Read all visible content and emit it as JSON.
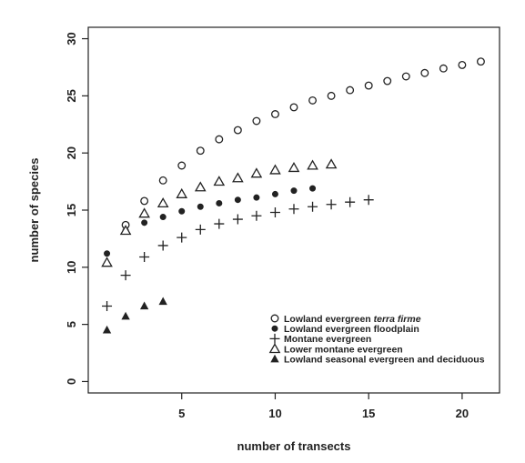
{
  "chart_data": {
    "type": "scatter",
    "title": "",
    "xlabel": "number of transects",
    "ylabel": "number of species",
    "xlim": [
      0,
      22
    ],
    "ylim": [
      -1,
      31
    ],
    "xticks": [
      5,
      10,
      15,
      20
    ],
    "yticks": [
      0,
      5,
      10,
      15,
      20,
      25,
      30
    ],
    "grid": false,
    "legend_position": "bottom-right",
    "series": [
      {
        "name": "Lowland evergreen terra firme",
        "name_parts": [
          "Lowland evergreen ",
          "terra firme"
        ],
        "marker": "open-circle",
        "x": [
          2,
          3,
          4,
          5,
          6,
          7,
          8,
          9,
          10,
          11,
          12,
          13,
          14,
          15,
          16,
          17,
          18,
          19,
          20,
          21
        ],
        "y": [
          13.7,
          15.8,
          17.6,
          18.9,
          20.2,
          21.2,
          22.0,
          22.8,
          23.4,
          24.0,
          24.6,
          25.0,
          25.5,
          25.9,
          26.3,
          26.7,
          27.0,
          27.4,
          27.7,
          28.0
        ]
      },
      {
        "name": "Lowland evergreen floodplain",
        "marker": "filled-circle",
        "x": [
          1,
          2,
          3,
          4,
          5,
          6,
          7,
          8,
          9,
          10,
          11,
          12
        ],
        "y": [
          11.2,
          13.2,
          13.9,
          14.4,
          14.9,
          15.3,
          15.6,
          15.9,
          16.1,
          16.4,
          16.7,
          16.9
        ]
      },
      {
        "name": "Montane evergreen",
        "marker": "plus",
        "x": [
          1,
          2,
          3,
          4,
          5,
          6,
          7,
          8,
          9,
          10,
          11,
          12,
          13,
          14,
          15
        ],
        "y": [
          6.6,
          9.3,
          10.9,
          11.9,
          12.6,
          13.3,
          13.8,
          14.2,
          14.5,
          14.8,
          15.1,
          15.3,
          15.5,
          15.7,
          15.9
        ]
      },
      {
        "name": "Lower montane evergreen",
        "marker": "open-triangle",
        "x": [
          1,
          2,
          3,
          4,
          5,
          6,
          7,
          8,
          9,
          10,
          11,
          12,
          13
        ],
        "y": [
          10.4,
          13.2,
          14.7,
          15.6,
          16.4,
          17.0,
          17.5,
          17.8,
          18.2,
          18.5,
          18.7,
          18.9,
          19.0
        ]
      },
      {
        "name": "Lowland seasonal evergreen and deciduous",
        "marker": "filled-triangle",
        "x": [
          1,
          2,
          3,
          4
        ],
        "y": [
          4.5,
          5.7,
          6.6,
          7.0
        ]
      }
    ]
  }
}
